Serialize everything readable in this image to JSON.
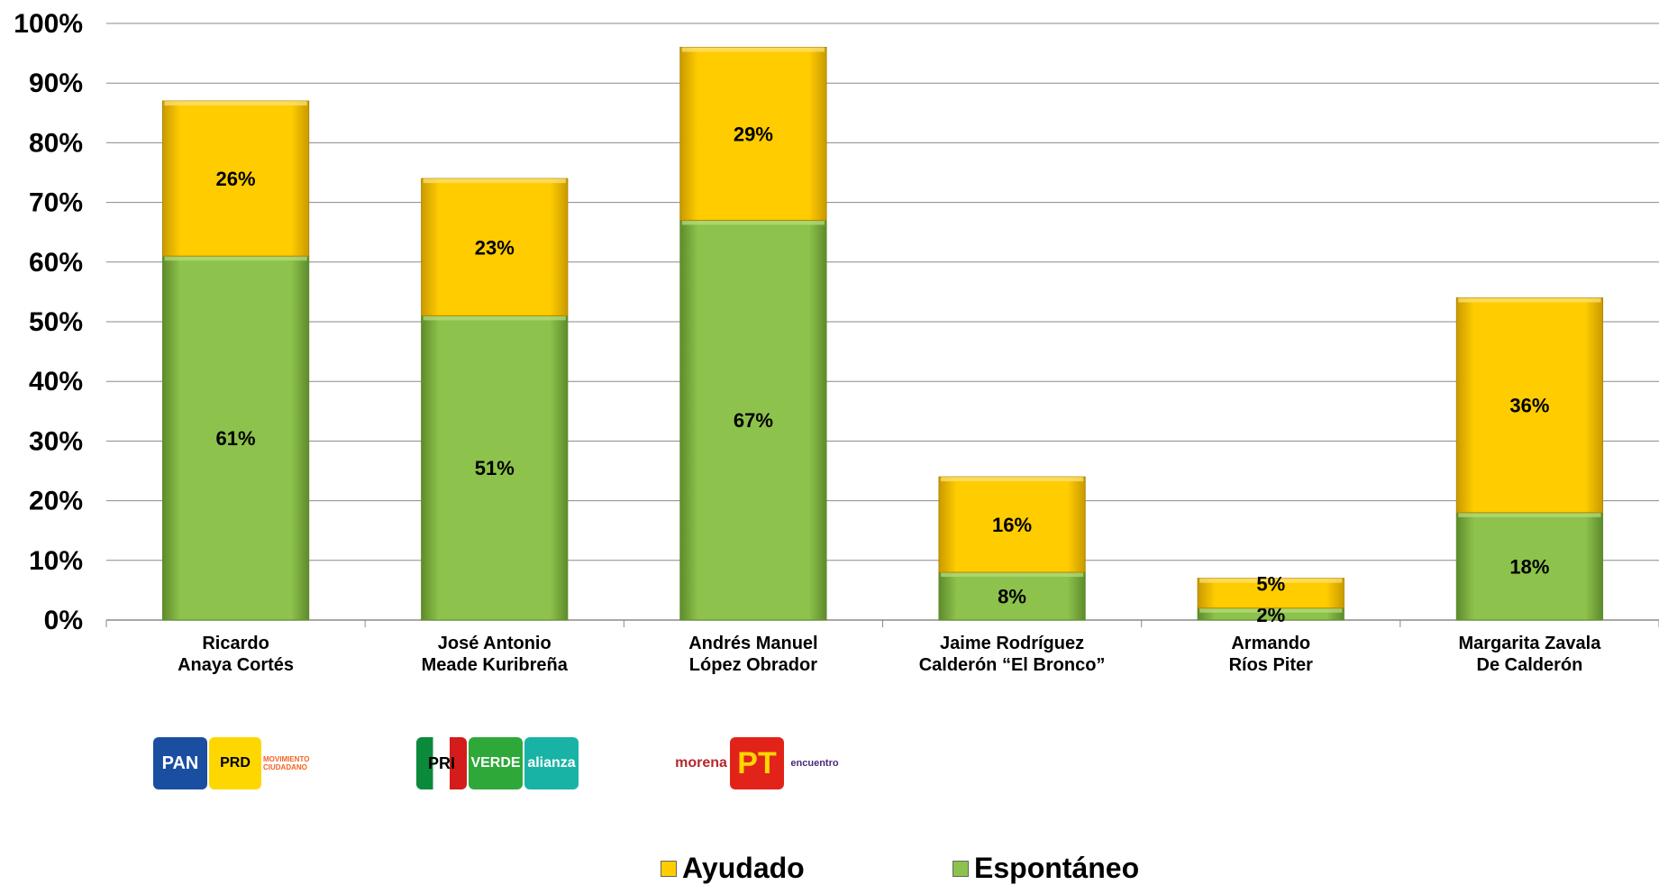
{
  "chart_data": {
    "type": "bar",
    "stacked": true,
    "categories": [
      [
        "Ricardo",
        "Anaya Cortés"
      ],
      [
        "José Antonio",
        "Meade Kuribreña"
      ],
      [
        "Andrés Manuel",
        "López Obrador"
      ],
      [
        "Jaime Rodríguez",
        "Calderón “El Bronco”"
      ],
      [
        "Armando",
        "Ríos Piter"
      ],
      [
        "Margarita Zavala",
        "De Calderón"
      ]
    ],
    "series": [
      {
        "name": "Espontáneo",
        "color": "#8DC24C",
        "values": [
          61,
          51,
          67,
          8,
          2,
          18
        ],
        "labels": [
          "61%",
          "51%",
          "67%",
          "8%",
          "2%",
          "18%"
        ]
      },
      {
        "name": "Ayudado",
        "color": "#FFCC00",
        "values": [
          26,
          23,
          29,
          16,
          5,
          36
        ],
        "labels": [
          "26%",
          "23%",
          "29%",
          "16%",
          "5%",
          "36%"
        ]
      }
    ],
    "ylim": [
      0,
      100
    ],
    "yticks": [
      "0%",
      "10%",
      "20%",
      "30%",
      "40%",
      "50%",
      "60%",
      "70%",
      "80%",
      "90%",
      "100%"
    ],
    "grid": true,
    "legend_position": "bottom",
    "legend": [
      "Ayudado",
      "Espontáneo"
    ]
  },
  "logos": {
    "anaya": [
      "PAN",
      "PRD",
      "MOVIMIENTO CIUDADANO"
    ],
    "meade": [
      "PRI",
      "VERDE",
      "alianza"
    ],
    "lopez": [
      "morena",
      "PT",
      "encuentro"
    ]
  }
}
